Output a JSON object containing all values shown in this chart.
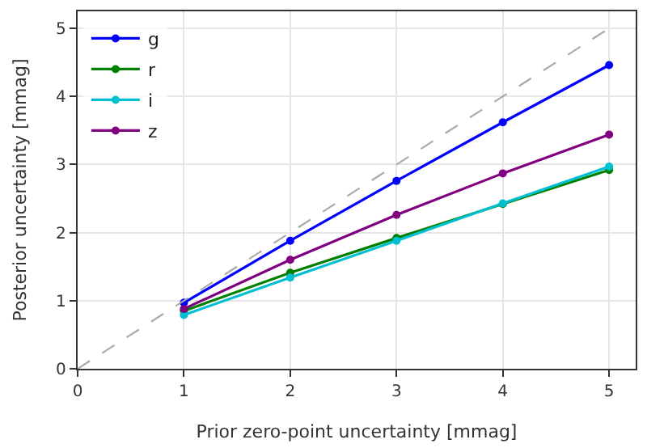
{
  "chart_data": {
    "type": "line",
    "xlabel": "Prior zero-point uncertainty [mmag]",
    "ylabel": "Posterior uncertainty [mmag]",
    "x": [
      1,
      2,
      3,
      4,
      5
    ],
    "series": [
      {
        "name": "g",
        "color": "#0000ff",
        "values": [
          0.97,
          1.88,
          2.76,
          3.62,
          4.46
        ]
      },
      {
        "name": "r",
        "color": "#008000",
        "values": [
          0.85,
          1.41,
          1.92,
          2.42,
          2.92
        ]
      },
      {
        "name": "i",
        "color": "#00bfd0",
        "values": [
          0.79,
          1.34,
          1.88,
          2.43,
          2.97
        ]
      },
      {
        "name": "z",
        "color": "#800080",
        "values": [
          0.88,
          1.6,
          2.26,
          2.87,
          3.44
        ]
      },
      {
        "type": "line",
        "x": [
          0,
          5
        ],
        "values": [
          0,
          5
        ],
        "color": "#aaaaaa",
        "line_style": "dashed",
        "marker": "none"
      }
    ],
    "xlim": [
      0,
      5.25
    ],
    "ylim": [
      0,
      5.25
    ],
    "xticks": [
      0,
      1,
      2,
      3,
      4,
      5
    ],
    "yticks": [
      0,
      1,
      2,
      3,
      4,
      5
    ],
    "grid": true,
    "legend": "top left",
    "marker": "circle",
    "line_style": "solid"
  }
}
